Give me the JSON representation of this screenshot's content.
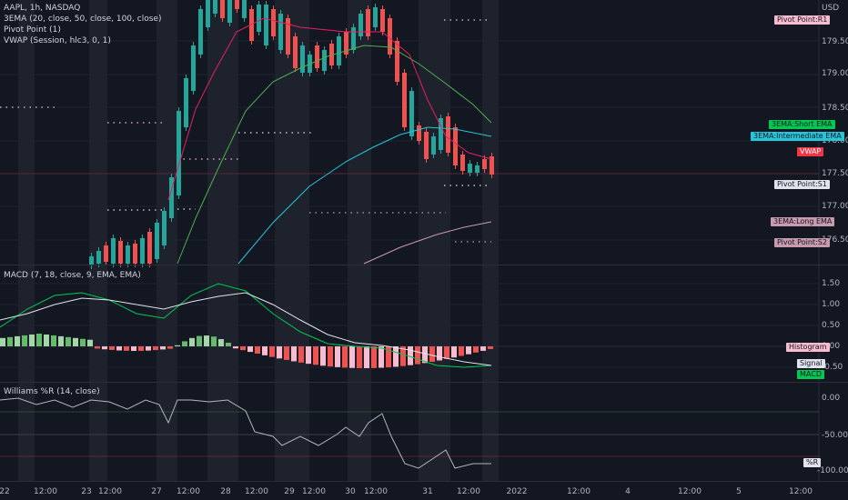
{
  "main_pane": {
    "legend": [
      "AAPL, 1h, NASDAQ",
      "3EMA (20, close, 50, close, 100, close)",
      "Pivot Point (1)",
      "VWAP (Session, hlc3, 0, 1)"
    ],
    "currency": "USD",
    "price_ticks": [
      "179.50",
      "179.00",
      "178.50",
      "178.00",
      "177.50",
      "177.00",
      "176.50"
    ],
    "tags": [
      {
        "label": "Pivot Point:R1",
        "bg": "#f8bbd0",
        "fg": "#131722"
      },
      {
        "label": "3EMA:Short EMA",
        "bg": "#00c853",
        "fg": "#131722"
      },
      {
        "label": "3EMA:Intermediate EMA",
        "bg": "#26c6da",
        "fg": "#131722"
      },
      {
        "label": "VWAP",
        "bg": "#f23645",
        "fg": "#ffffff"
      },
      {
        "label": "Pivot Point:S1",
        "bg": "#e0e3eb",
        "fg": "#131722"
      },
      {
        "label": "3EMA:Long EMA",
        "bg": "#c79aad",
        "fg": "#131722"
      },
      {
        "label": "Pivot Point:S2",
        "bg": "#c79aad",
        "fg": "#131722"
      }
    ]
  },
  "macd_pane": {
    "legend": "MACD (7, 18, close, 9, EMA, EMA)",
    "ticks": [
      "1.50",
      "1.00",
      "0.50",
      "0.00",
      "-0.50"
    ],
    "tags": [
      {
        "label": "Histogram",
        "bg": "#f8bbd0",
        "fg": "#131722"
      },
      {
        "label": "Signal",
        "bg": "#e0e3eb",
        "fg": "#131722"
      },
      {
        "label": "MACD",
        "bg": "#00c853",
        "fg": "#131722"
      }
    ]
  },
  "williams_pane": {
    "legend": "Williams %R (14, close)",
    "ticks": [
      "0.00",
      "-50.00",
      "-100.00"
    ],
    "tags": [
      {
        "label": "%R",
        "bg": "#e0e3eb",
        "fg": "#131722"
      }
    ]
  },
  "time_axis": {
    "labels": [
      "22",
      "12:00",
      "23",
      "12:00",
      "27",
      "12:00",
      "28",
      "12:00",
      "29",
      "12:00",
      "30",
      "12:00",
      "31",
      "12:00",
      "2022",
      "12:00",
      "4",
      "12:00",
      "5",
      "12:00"
    ]
  },
  "colors": {
    "up": "#26a69a",
    "down": "#ef5350",
    "short_ema": "#4caf50",
    "intermediate_ema": "#26c6da",
    "long_ema": "#c79aad",
    "vwap": "#f23645",
    "pivot_r1": "#f8bbd0",
    "pivot_s1": "#e0e3eb",
    "pivot_s2": "#c79aad",
    "background": "#131722",
    "session_shade": "#1e222d"
  }
}
